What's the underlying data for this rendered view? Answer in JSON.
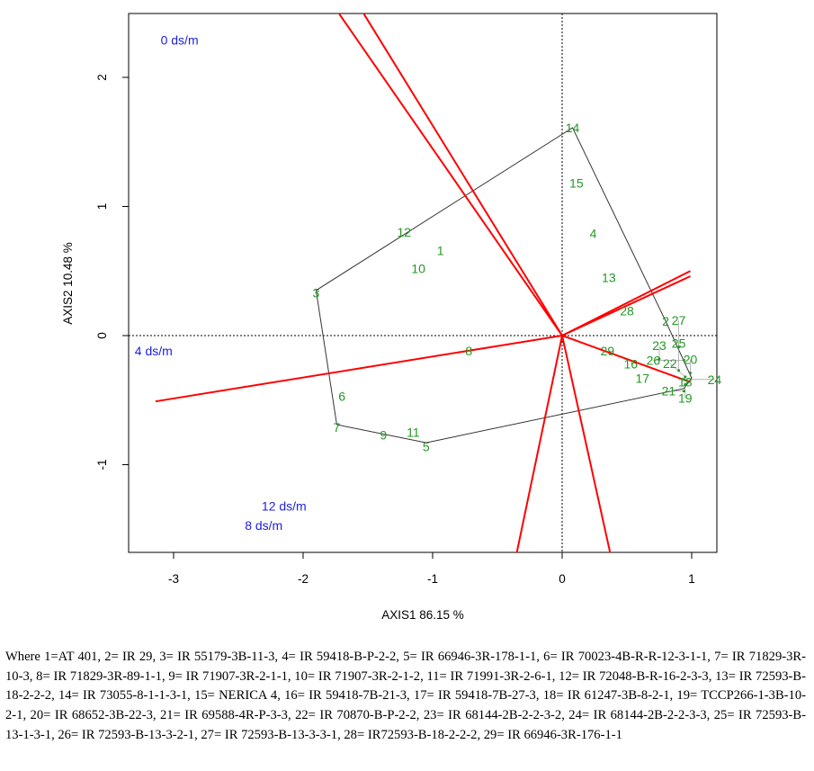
{
  "chart_data": {
    "type": "scatter",
    "subtype": "GGE biplot (which-won-where)",
    "xlabel": "AXIS1 86.15 %",
    "ylabel": "AXIS2 10.48 %",
    "xlim": [
      -3.35,
      1.19
    ],
    "ylim": [
      -1.68,
      2.49
    ],
    "xticks": [
      -3,
      -2,
      -1,
      0,
      1
    ],
    "yticks": [
      -1,
      0,
      1,
      2
    ],
    "grid": false,
    "colors": {
      "genotype": "#229922",
      "environment_line": "#ff0000",
      "environment_label": "#2020e0",
      "hull": "#333333"
    },
    "genotypes": [
      {
        "label": "1",
        "x": -0.94,
        "y": 0.66
      },
      {
        "label": "2",
        "x": 0.8,
        "y": 0.11
      },
      {
        "label": "3",
        "x": -1.9,
        "y": 0.33
      },
      {
        "label": "4",
        "x": 0.24,
        "y": 0.79
      },
      {
        "label": "5",
        "x": -1.05,
        "y": -0.86
      },
      {
        "label": "6",
        "x": -1.7,
        "y": -0.47
      },
      {
        "label": "7",
        "x": -1.74,
        "y": -0.71
      },
      {
        "label": "8",
        "x": -0.72,
        "y": -0.12
      },
      {
        "label": "9",
        "x": -1.38,
        "y": -0.77
      },
      {
        "label": "10",
        "x": -1.11,
        "y": 0.52
      },
      {
        "label": "11",
        "x": -1.15,
        "y": -0.75
      },
      {
        "label": "12",
        "x": -1.22,
        "y": 0.8
      },
      {
        "label": "13",
        "x": 0.36,
        "y": 0.45
      },
      {
        "label": "14",
        "x": 0.08,
        "y": 1.61
      },
      {
        "label": "15",
        "x": 0.11,
        "y": 1.18
      },
      {
        "label": "16",
        "x": 0.53,
        "y": -0.22
      },
      {
        "label": "17",
        "x": 0.62,
        "y": -0.33
      },
      {
        "label": "18",
        "x": 0.95,
        "y": -0.36
      },
      {
        "label": "19",
        "x": 0.95,
        "y": -0.38
      },
      {
        "label": "20",
        "x": 0.99,
        "y": -0.29
      },
      {
        "label": "21",
        "x": 0.94,
        "y": -0.43
      },
      {
        "label": "22",
        "x": 0.95,
        "y": -0.32
      },
      {
        "label": "23",
        "x": 0.75,
        "y": -0.18
      },
      {
        "label": "24",
        "x": 0.94,
        "y": -0.34
      },
      {
        "label": "25",
        "x": 0.9,
        "y": -0.27
      },
      {
        "label": "26",
        "x": 0.94,
        "y": -0.19
      },
      {
        "label": "27",
        "x": 0.9,
        "y": -0.09
      },
      {
        "label": "28",
        "x": 0.5,
        "y": 0.19
      },
      {
        "label": "29",
        "x": 0.35,
        "y": -0.12
      }
    ],
    "hull": [
      [
        0.08,
        1.61
      ],
      [
        0.8,
        0.11
      ],
      [
        1.0,
        -0.33
      ],
      [
        0.94,
        -0.41
      ],
      [
        -1.05,
        -0.83
      ],
      [
        -1.74,
        -0.69
      ],
      [
        -1.9,
        0.35
      ]
    ],
    "environment_lines": [
      [
        -1.72,
        2.49
      ],
      [
        -1.53,
        2.49
      ],
      [
        -3.14,
        -0.51
      ],
      [
        0.99,
        0.5
      ],
      [
        0.99,
        0.46
      ],
      [
        0.99,
        -0.36
      ],
      [
        -0.35,
        -1.68
      ],
      [
        0.37,
        -1.68
      ]
    ],
    "environment_labels": [
      {
        "label": "0 ds/m",
        "x": -3.1,
        "y": 2.29
      },
      {
        "label": "4 ds/m",
        "x": -3.3,
        "y": -0.12
      },
      {
        "label": "8 ds/m",
        "x": -2.45,
        "y": -1.47
      },
      {
        "label": "12 ds/m",
        "x": -2.32,
        "y": -1.53
      }
    ]
  },
  "caption": "Where 1=AT 401, 2= IR 29, 3= IR 55179-3B-11-3, 4= IR 59418-B-P-2-2, 5= IR 66946-3R-178-1-1, 6= IR 70023-4B-R-R-12-3-1-1, 7= IR 71829-3R-10-3, 8= IR 71829-3R-89-1-1, 9= IR 71907-3R-2-1-1, 10= IR 71907-3R-2-1-2, 11= IR 71991-3R-2-6-1, 12= IR 72048-B-R-16-2-3-3, 13= IR 72593-B-18-2-2-2, 14= IR 73055-8-1-1-3-1, 15= NERICA 4, 16= IR 59418-7B-21-3, 17= IR 59418-7B-27-3, 18= IR 61247-3B-8-2-1, 19= TCCP266-1-3B-10-2-1, 20= IR 68652-3B-22-3, 21= IR 69588-4R-P-3-3, 22= IR 70870-B-P-2-2, 23= IR 68144-2B-2-2-3-2, 24= IR 68144-2B-2-2-3-3, 25= IR 72593-B-13-1-3-1, 26= IR 72593-B-13-3-2-1, 27= IR 72593-B-13-3-3-1, 28= IR72593-B-18-2-2-2, 29= IR 66946-3R-176-1-1"
}
